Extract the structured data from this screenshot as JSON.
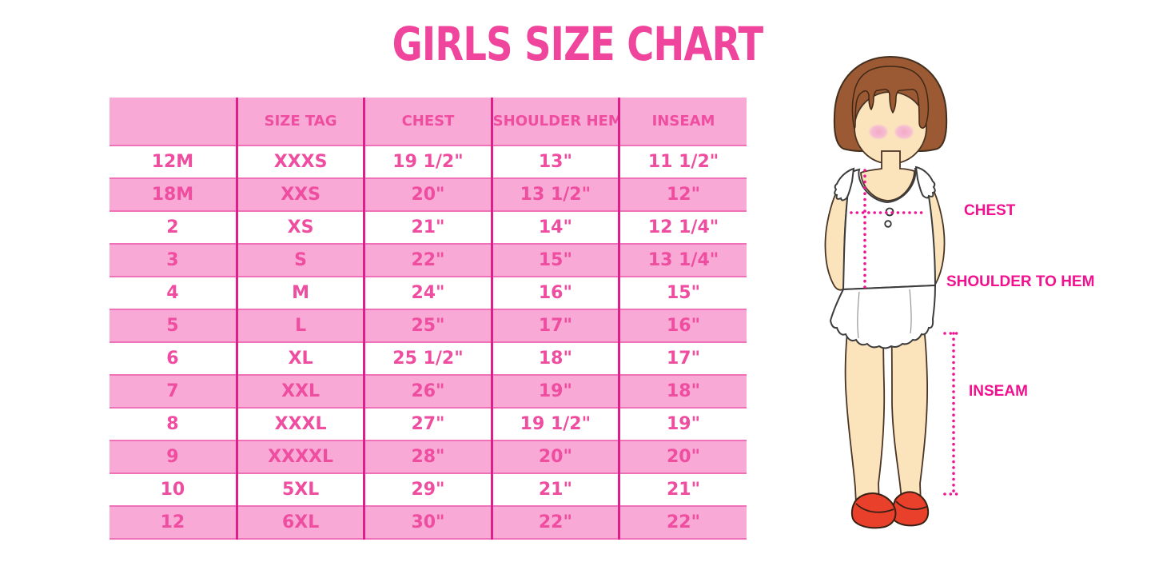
{
  "chart_data": {
    "type": "table",
    "title": "GIRLS SIZE CHART",
    "columns": [
      "",
      "SIZE TAG",
      "CHEST",
      "SHOULDER HEM",
      "INSEAM"
    ],
    "rows": [
      [
        "12M",
        "XXXS",
        "19 1/2\"",
        "13\"",
        "11 1/2\""
      ],
      [
        "18M",
        "XXS",
        "20\"",
        "13 1/2\"",
        "12\""
      ],
      [
        "2",
        "XS",
        "21\"",
        "14\"",
        "12 1/4\""
      ],
      [
        "3",
        "S",
        "22\"",
        "15\"",
        "13 1/4\""
      ],
      [
        "4",
        "M",
        "24\"",
        "16\"",
        "15\""
      ],
      [
        "5",
        "L",
        "25\"",
        "17\"",
        "16\""
      ],
      [
        "6",
        "XL",
        "25 1/2\"",
        "18\"",
        "17\""
      ],
      [
        "7",
        "XXL",
        "26\"",
        "19\"",
        "18\""
      ],
      [
        "8",
        "XXXL",
        "27\"",
        "19 1/2\"",
        "19\""
      ],
      [
        "9",
        "XXXXL",
        "28\"",
        "20\"",
        "20\""
      ],
      [
        "10",
        "5XL",
        "29\"",
        "21\"",
        "21\""
      ],
      [
        "12",
        "6XL",
        "30\"",
        "22\"",
        "22\""
      ]
    ],
    "row_stripe_pattern": "white/pink alternating, header pink"
  },
  "figure_labels": {
    "chest": "CHEST",
    "shoulder_to_hem": "SHOULDER TO HEM",
    "inseam": "INSEAM"
  },
  "colors": {
    "title_pink": "#f0459c",
    "row_pink": "#f9a9d5",
    "line_magenta": "#de1e8a",
    "text_pink": "#ee4da0",
    "label_magenta": "#f2108f",
    "dot_pink": "#ee1592",
    "hair_brown": "#9c5a34",
    "skin": "#fbe4bc",
    "shoe_red": "#e8402a"
  }
}
